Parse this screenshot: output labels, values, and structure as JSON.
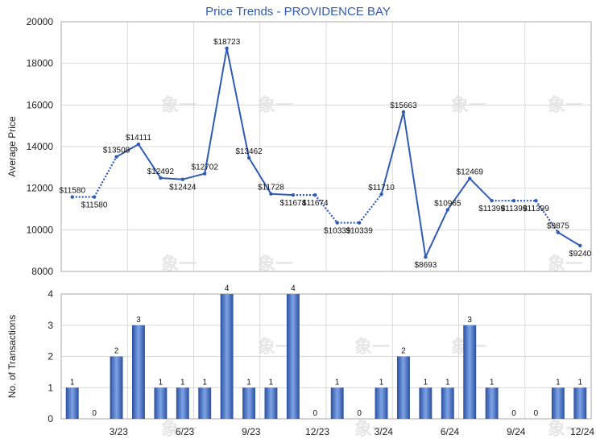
{
  "title": "Price Trends - PROVIDENCE BAY",
  "colors": {
    "line": "#2f5bb7",
    "bar_dark": "#2a4ea0",
    "bar_light": "#7ea4e6",
    "grid": "#d9d9d9"
  },
  "watermark": "象一",
  "chart_data": [
    {
      "type": "line",
      "title": "Price Trends - PROVIDENCE BAY",
      "ylabel": "Average Price",
      "ylim": [
        8000,
        20000
      ],
      "yticks": [
        "8000",
        "10000",
        "12000",
        "14000",
        "16000",
        "18000",
        "20000"
      ],
      "x": [
        "1/23",
        "2/23",
        "3/23",
        "4/23",
        "5/23",
        "6/23",
        "7/23",
        "8/23",
        "9/23",
        "10/23",
        "11/23",
        "12/23",
        "1/24",
        "2/24",
        "3/24",
        "4/24",
        "5/24",
        "6/24",
        "7/24",
        "8/24",
        "9/24",
        "10/24",
        "11/24",
        "12/24"
      ],
      "values": [
        11580,
        11580,
        13508,
        14111,
        12492,
        12424,
        12702,
        18723,
        13462,
        11728,
        11674,
        11674,
        10339,
        10339,
        11710,
        15663,
        8693,
        10965,
        12469,
        11399,
        11399,
        11399,
        9875,
        9240
      ],
      "labels": [
        "$11580",
        "$11580",
        "$13508",
        "$14111",
        "$12492",
        "$12424",
        "$12702",
        "$18723",
        "$13462",
        "$11728",
        "$11674",
        "$11674",
        "$10339",
        "$10339",
        "$11710",
        "$15663",
        "$8693",
        "$10965",
        "$12469",
        "$11399",
        "$11399",
        "$11399",
        "$9875",
        "$9240"
      ],
      "interpolated": [
        1,
        11,
        13,
        20,
        21
      ]
    },
    {
      "type": "bar",
      "ylabel": "No. of Transactions",
      "ylim": [
        0,
        4
      ],
      "yticks": [
        "0",
        "1",
        "2",
        "3",
        "4"
      ],
      "x": [
        "1/23",
        "2/23",
        "3/23",
        "4/23",
        "5/23",
        "6/23",
        "7/23",
        "8/23",
        "9/23",
        "10/23",
        "11/23",
        "12/23",
        "1/24",
        "2/24",
        "3/24",
        "4/24",
        "5/24",
        "6/24",
        "7/24",
        "8/24",
        "9/24",
        "10/24",
        "11/24",
        "12/24"
      ],
      "values": [
        1,
        0,
        2,
        3,
        1,
        1,
        1,
        4,
        1,
        1,
        4,
        0,
        1,
        0,
        1,
        2,
        1,
        1,
        3,
        1,
        0,
        0,
        1,
        1
      ],
      "xticks": [
        "3/23",
        "6/23",
        "9/23",
        "12/23",
        "3/24",
        "6/24",
        "9/24",
        "12/24"
      ],
      "xtick_index": [
        2,
        5,
        8,
        11,
        14,
        17,
        20,
        23
      ]
    }
  ]
}
